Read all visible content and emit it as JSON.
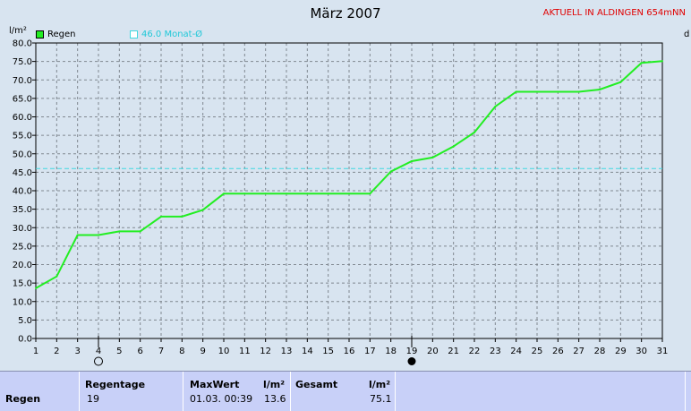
{
  "chart_data": {
    "type": "line",
    "title": "März 2007",
    "station": "AKTUELL IN ALDINGEN 654mNN",
    "ylabel": "l/m²",
    "ylabel_right": "d",
    "ylim": [
      0,
      80
    ],
    "yticks": [
      "0.0",
      "5.0",
      "10.0",
      "15.0",
      "20.0",
      "25.0",
      "30.0",
      "35.0",
      "40.0",
      "45.0",
      "50.0",
      "55.0",
      "60.0",
      "65.0",
      "70.0",
      "75.0",
      "80.0"
    ],
    "xlim": [
      1,
      31
    ],
    "xticks": [
      "1",
      "2",
      "3",
      "4",
      "5",
      "6",
      "7",
      "8",
      "9",
      "10",
      "11",
      "12",
      "13",
      "14",
      "15",
      "16",
      "17",
      "18",
      "19",
      "20",
      "21",
      "22",
      "23",
      "24",
      "25",
      "26",
      "27",
      "28",
      "29",
      "30",
      "31"
    ],
    "grid": true,
    "legend_position": "top-left",
    "series": [
      {
        "name": "Regen",
        "color": "#22ee22",
        "x": [
          1,
          2,
          3,
          4,
          5,
          6,
          7,
          8,
          9,
          10,
          11,
          12,
          13,
          14,
          15,
          16,
          17,
          18,
          19,
          20,
          21,
          22,
          23,
          24,
          25,
          26,
          27,
          28,
          29,
          30,
          31
        ],
        "values": [
          13.6,
          16.8,
          28.0,
          28.0,
          29.0,
          29.0,
          33.0,
          33.0,
          34.8,
          39.2,
          39.2,
          39.2,
          39.2,
          39.2,
          39.2,
          39.2,
          39.2,
          45.2,
          48.0,
          49.0,
          52.0,
          55.8,
          62.8,
          66.8,
          66.8,
          66.8,
          66.8,
          67.4,
          69.4,
          74.6,
          75.1
        ]
      }
    ],
    "reference_line": {
      "label": "46.0 Monat-Ø",
      "value": 46.0,
      "color": "#40d8e0"
    },
    "moon_markers": [
      {
        "day": 4,
        "phase": "full-moon-icon"
      },
      {
        "day": 19,
        "phase": "new-moon-icon"
      }
    ]
  },
  "table": {
    "row_label": "Regen",
    "regentage_header": "Regentage",
    "regentage_value": "19",
    "maxwert_header": "MaxWert",
    "maxwert_unit": "l/m²",
    "maxwert_date": "01.03.  00:39",
    "maxwert_value": "13.6",
    "gesamt_header": "Gesamt",
    "gesamt_unit": "l/m²",
    "gesamt_value": "75.1"
  }
}
